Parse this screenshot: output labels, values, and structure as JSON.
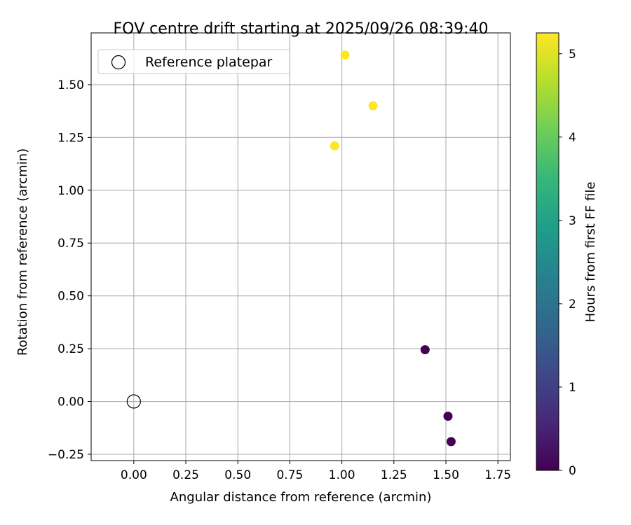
{
  "chart_data": {
    "type": "scatter",
    "title": "FOV centre drift starting at 2025/09/26 08:39:40",
    "xlabel": "Angular distance from reference (arcmin)",
    "ylabel": "Rotation from reference (arcmin)",
    "xlim": [
      -0.205,
      1.81
    ],
    "ylim": [
      -0.28,
      1.745
    ],
    "xticks": [
      0.0,
      0.25,
      0.5,
      0.75,
      1.0,
      1.25,
      1.5,
      1.75
    ],
    "xtick_labels": [
      "0.00",
      "0.25",
      "0.50",
      "0.75",
      "1.00",
      "1.25",
      "1.50",
      "1.75"
    ],
    "yticks": [
      -0.25,
      0.0,
      0.25,
      0.5,
      0.75,
      1.0,
      1.25,
      1.5
    ],
    "ytick_labels": [
      "−0.25",
      "0.00",
      "0.25",
      "0.50",
      "0.75",
      "1.00",
      "1.25",
      "1.50"
    ],
    "grid": true,
    "legend": {
      "position": "top-left",
      "entries": [
        "Reference platepar"
      ]
    },
    "reference_point": {
      "x": 0.0,
      "y": 0.0
    },
    "points": [
      {
        "x": 1.4,
        "y": 0.245,
        "hours": 0.0
      },
      {
        "x": 1.51,
        "y": -0.07,
        "hours": 0.0
      },
      {
        "x": 1.525,
        "y": -0.19,
        "hours": 0.0
      },
      {
        "x": 0.965,
        "y": 1.21,
        "hours": 5.25
      },
      {
        "x": 1.15,
        "y": 1.4,
        "hours": 5.25
      },
      {
        "x": 1.015,
        "y": 1.64,
        "hours": 5.25
      }
    ],
    "colorbar": {
      "label": "Hours from first FF file",
      "min": 0,
      "max": 5.25,
      "ticks": [
        0,
        1,
        2,
        3,
        4,
        5
      ],
      "tick_labels": [
        "0",
        "1",
        "2",
        "3",
        "4",
        "5"
      ],
      "colormap": "viridis",
      "colormap_stops": [
        "#440154",
        "#482878",
        "#3e4989",
        "#31688e",
        "#26828e",
        "#1f9e89",
        "#35b779",
        "#6ece58",
        "#b5de2b",
        "#fde725"
      ]
    }
  }
}
